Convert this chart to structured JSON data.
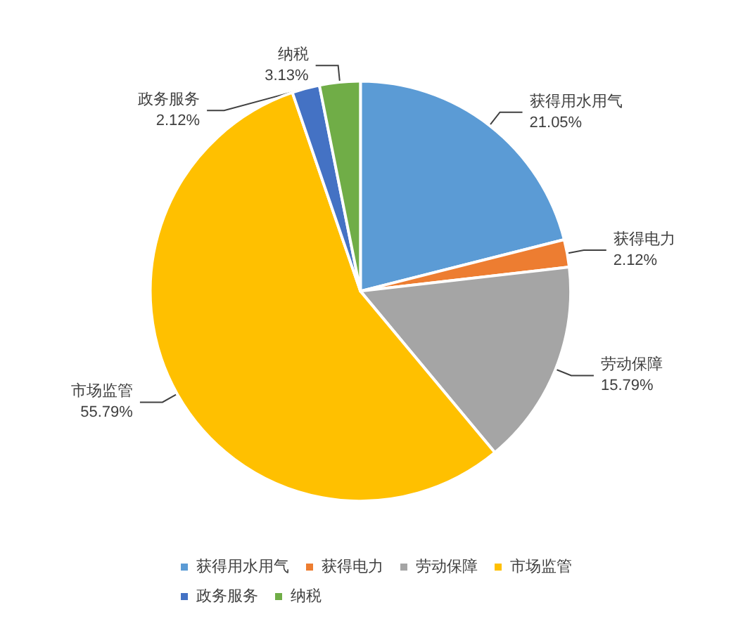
{
  "chart_data": {
    "type": "pie",
    "categories": [
      "获得用水用气",
      "获得电力",
      "劳动保障",
      "市场监管",
      "政务服务",
      "纳税"
    ],
    "values": [
      21.05,
      2.12,
      15.79,
      55.79,
      2.12,
      3.13
    ],
    "colors": [
      "#5b9bd5",
      "#ed7d31",
      "#a5a5a5",
      "#ffc000",
      "#4472c4",
      "#70ad47"
    ],
    "value_labels": [
      "21.05%",
      "2.12%",
      "15.79%",
      "55.79%",
      "2.12%",
      "3.13%"
    ],
    "legend": "bottom"
  }
}
